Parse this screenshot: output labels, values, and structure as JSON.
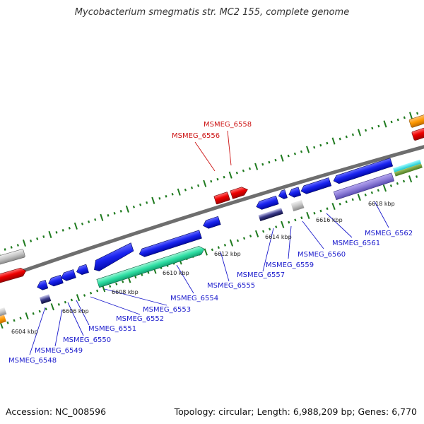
{
  "title": "Mycobacterium smegmatis str. MC2 155, complete genome",
  "footer": {
    "accession": "Accession: NC_008596",
    "summary": "Topology: circular; Length: 6,988,209 bp; Genes: 6,770"
  },
  "colors": {
    "backbone": "#777777",
    "tick": "#1e7a1e",
    "gene_blue": "#0a14e6",
    "gene_red": "#e60000",
    "label_blue": "#1a1acc",
    "label_red": "#cc1111",
    "gene_cyan": "#22e0a0",
    "gene_lavender": "#8c7cd8",
    "gene_orange": "#ff9900",
    "gene_grey": "#bbbbbb"
  },
  "ticks": [
    "6604 kbp",
    "6606 kbp",
    "6608 kbp",
    "6610 kbp",
    "6612 kbp",
    "6614 kbp",
    "6616 kbp",
    "6618 kbp"
  ],
  "labels_below": [
    "MSMEG_6548",
    "MSMEG_6549",
    "MSMEG_6550",
    "MSMEG_6551",
    "MSMEG_6552",
    "MSMEG_6553",
    "MSMEG_6554",
    "MSMEG_6555",
    "MSMEG_6557",
    "MSMEG_6559",
    "MSMEG_6560",
    "MSMEG_6561",
    "MSMEG_6562"
  ],
  "labels_above": [
    "MSMEG_6556",
    "MSMEG_6558"
  ]
}
